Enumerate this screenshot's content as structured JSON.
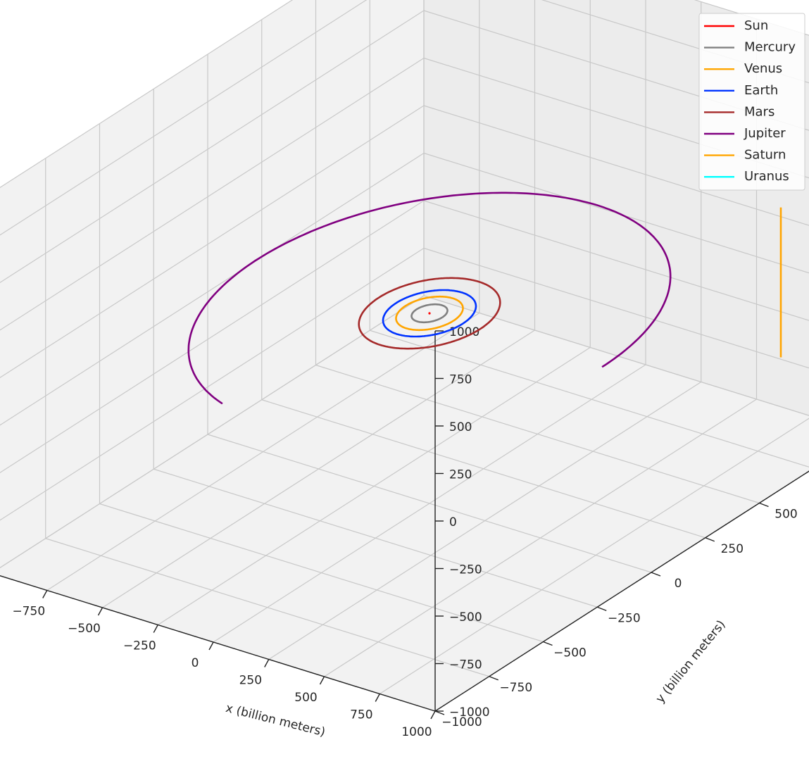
{
  "chart_data": {
    "type": "line3d",
    "title": "",
    "xlabel": "x (billion meters)",
    "ylabel": "y (billion meters)",
    "zlabel": "",
    "xlim": [
      -1000,
      1000
    ],
    "ylim": [
      -1000,
      1000
    ],
    "zlim": [
      -1000,
      1000
    ],
    "x_ticks": [
      "−1000",
      "−750",
      "−500",
      "−250",
      "0",
      "250",
      "500",
      "750",
      "1000"
    ],
    "y_ticks": [
      "−1000",
      "−750",
      "−500",
      "−250",
      "0",
      "250",
      "500",
      "750",
      "1000"
    ],
    "z_ticks": [
      "−1000",
      "−750",
      "−500",
      "−250",
      "0",
      "250",
      "500",
      "750",
      "1000"
    ],
    "grid": true,
    "legend_position": "top-right",
    "series": [
      {
        "name": "Sun",
        "color": "#ff0000",
        "radius": 0,
        "arc_start_deg": 0,
        "arc_end_deg": 360
      },
      {
        "name": "Mercury",
        "color": "#808080",
        "radius": 58,
        "arc_start_deg": 0,
        "arc_end_deg": 360
      },
      {
        "name": "Venus",
        "color": "#ffa500",
        "radius": 108,
        "arc_start_deg": 0,
        "arc_end_deg": 360
      },
      {
        "name": "Earth",
        "color": "#0033ff",
        "radius": 150,
        "arc_start_deg": 0,
        "arc_end_deg": 360
      },
      {
        "name": "Mars",
        "color": "#a52a2a",
        "radius": 228,
        "arc_start_deg": 0,
        "arc_end_deg": 360
      },
      {
        "name": "Jupiter",
        "color": "#800080",
        "radius": 778,
        "arc_start_deg": 0,
        "arc_end_deg": 255
      },
      {
        "name": "Saturn",
        "color": "#ffa500",
        "radius": 1430,
        "arc_start_deg": 15,
        "arc_end_deg": 55
      },
      {
        "name": "Uranus",
        "color": "#00ffff",
        "radius": 2870,
        "arc_start_deg": 0,
        "arc_end_deg": 0
      }
    ]
  }
}
